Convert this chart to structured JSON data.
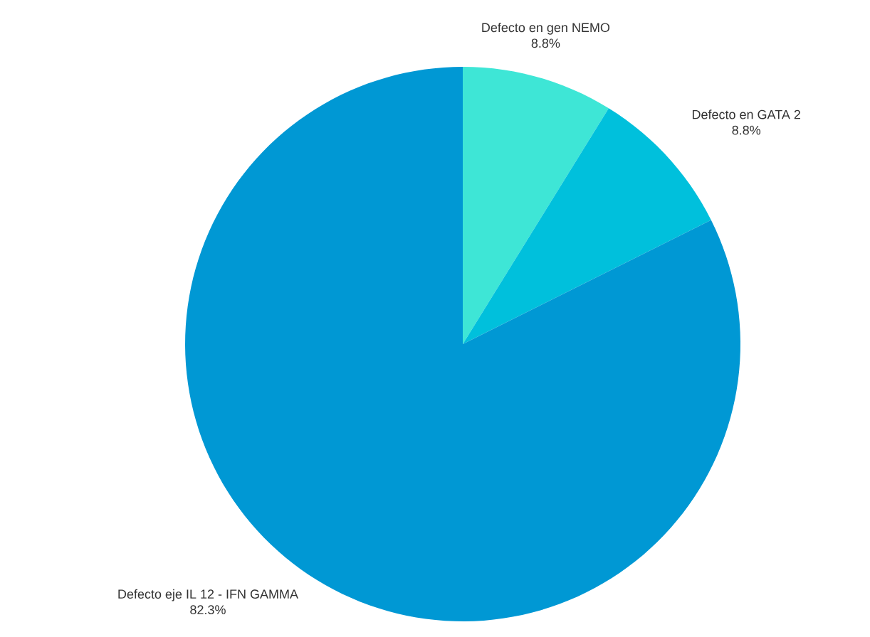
{
  "chart_data": {
    "type": "pie",
    "categories": [
      "Defecto en gen NEMO",
      "Defecto en GATA 2",
      "Defecto eje IL 12 - IFN GAMMA"
    ],
    "values": [
      8.8,
      8.8,
      82.3
    ],
    "value_labels": [
      "8.8%",
      "8.8%",
      "82.3%"
    ],
    "colors": [
      "#3ee6d6",
      "#00c0dc",
      "#0098d4"
    ]
  }
}
